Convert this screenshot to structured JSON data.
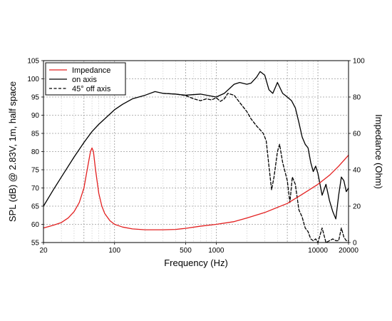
{
  "chart_data": {
    "type": "line",
    "xlabel": "Frequency (Hz)",
    "ylabel": "SPL (dB) @ 2.83V, 1m, half space",
    "y2label": "Impedance (Ohm)",
    "xscale": "log",
    "xlim": [
      20,
      20000
    ],
    "ylim": [
      55,
      105
    ],
    "y2lim": [
      0,
      100
    ],
    "grid": true,
    "legend_position": "top-left",
    "x_ticks": [
      {
        "value": 20,
        "label": "20"
      },
      {
        "value": 100,
        "label": "100"
      },
      {
        "value": 500,
        "label": "500"
      },
      {
        "value": 1000,
        "label": "1000"
      },
      {
        "value": 10000,
        "label": "10000"
      },
      {
        "value": 20000,
        "label": "20000"
      }
    ],
    "y_ticks": [
      55,
      60,
      65,
      70,
      75,
      80,
      85,
      90,
      95,
      100,
      105
    ],
    "y2_ticks": [
      0,
      20,
      40,
      60,
      80,
      100
    ],
    "series": [
      {
        "name": "Impedance",
        "axis": "right",
        "color": "#e32020",
        "dash": "solid",
        "x": [
          20,
          25,
          30,
          35,
          40,
          45,
          50,
          55,
          58,
          60,
          62,
          65,
          70,
          75,
          80,
          90,
          100,
          120,
          150,
          200,
          300,
          400,
          500,
          700,
          1000,
          1500,
          2000,
          3000,
          5000,
          7000,
          10000,
          13000,
          16000,
          20000
        ],
        "y": [
          8,
          9.5,
          11,
          13.5,
          17,
          22,
          30,
          43,
          50,
          52,
          50,
          40,
          27,
          20,
          16,
          12,
          10,
          8.5,
          7.5,
          7,
          7,
          7.2,
          7.8,
          9,
          10,
          11.5,
          13.5,
          16.5,
          21.5,
          26.5,
          32,
          37,
          42,
          48
        ]
      },
      {
        "name": "on axis",
        "axis": "left",
        "color": "#000000",
        "dash": "solid",
        "x": [
          20,
          25,
          30,
          40,
          50,
          60,
          70,
          80,
          100,
          120,
          150,
          200,
          250,
          300,
          400,
          500,
          700,
          1000,
          1200,
          1500,
          1700,
          2000,
          2200,
          2500,
          2700,
          3000,
          3300,
          3600,
          4000,
          4500,
          5000,
          5500,
          6000,
          6500,
          7000,
          7500,
          8000,
          8500,
          9000,
          9500,
          10000,
          11000,
          12000,
          13000,
          14000,
          15000,
          16000,
          17000,
          18000,
          19000,
          20000
        ],
        "y": [
          65,
          69.5,
          73,
          78.5,
          82.5,
          85.5,
          87.5,
          89,
          91.5,
          93,
          94.5,
          95.5,
          96.5,
          96,
          95.8,
          95.5,
          95.8,
          95,
          96,
          98.5,
          99,
          98.5,
          98.8,
          100.5,
          102,
          101,
          97,
          96,
          99,
          96,
          95,
          94,
          92,
          88,
          84,
          82,
          81,
          77,
          74.5,
          76,
          74,
          68,
          71,
          66.5,
          63.5,
          61.5,
          68,
          73,
          72,
          69,
          70
        ]
      },
      {
        "name": "45° off axis",
        "axis": "left",
        "color": "#000000",
        "dash": "dashed",
        "x": [
          300,
          400,
          500,
          600,
          700,
          800,
          900,
          1000,
          1100,
          1200,
          1300,
          1500,
          1700,
          2000,
          2200,
          2500,
          2700,
          2900,
          3100,
          3300,
          3500,
          3700,
          4000,
          4200,
          4500,
          5000,
          5300,
          5600,
          6000,
          6500,
          7000,
          7500,
          8000,
          8500,
          9000,
          9500,
          10000,
          11000,
          12000,
          13000,
          14000,
          15000,
          16000,
          17000,
          18000,
          19000,
          20000
        ],
        "y": [
          96,
          95.8,
          95.4,
          94.5,
          94,
          94.5,
          94.2,
          94.8,
          93.8,
          94.5,
          96,
          95.5,
          93.5,
          91,
          89,
          87,
          86,
          85,
          83,
          76,
          69.5,
          73,
          80,
          82,
          77,
          72,
          66,
          73,
          71,
          64,
          62,
          59,
          58,
          56,
          55.5,
          56,
          55,
          59,
          55,
          55.5,
          56,
          55.5,
          55.5,
          59,
          56.5,
          55.5,
          55.5
        ]
      }
    ]
  }
}
